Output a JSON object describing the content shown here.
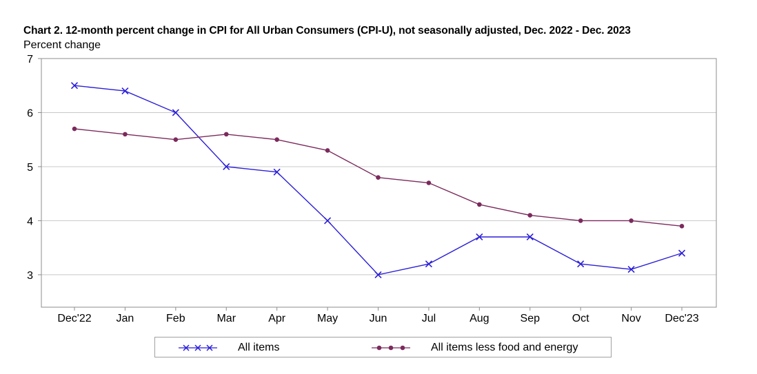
{
  "chart_data": {
    "type": "line",
    "title": "Chart 2. 12-month percent change in CPI for All Urban Consumers (CPI-U), not seasonally adjusted, Dec. 2022 - Dec. 2023",
    "ylabel": "Percent change",
    "xlabel": "",
    "categories": [
      "Dec'22",
      "Jan",
      "Feb",
      "Mar",
      "Apr",
      "May",
      "Jun",
      "Jul",
      "Aug",
      "Sep",
      "Oct",
      "Nov",
      "Dec'23"
    ],
    "ylim": [
      2.4,
      7
    ],
    "yticks": [
      3,
      4,
      5,
      6,
      7
    ],
    "grid": true,
    "legend_position": "bottom",
    "series": [
      {
        "name": "All items",
        "marker": "x",
        "color": "#2b1fd6",
        "values": [
          6.5,
          6.4,
          6.0,
          5.0,
          4.9,
          4.0,
          3.0,
          3.2,
          3.7,
          3.7,
          3.2,
          3.1,
          3.4
        ]
      },
      {
        "name": "All items less food and energy",
        "marker": "circle",
        "color": "#7b2a5c",
        "values": [
          5.7,
          5.6,
          5.5,
          5.6,
          5.5,
          5.3,
          4.8,
          4.7,
          4.3,
          4.1,
          4.0,
          4.0,
          3.9
        ]
      }
    ]
  }
}
